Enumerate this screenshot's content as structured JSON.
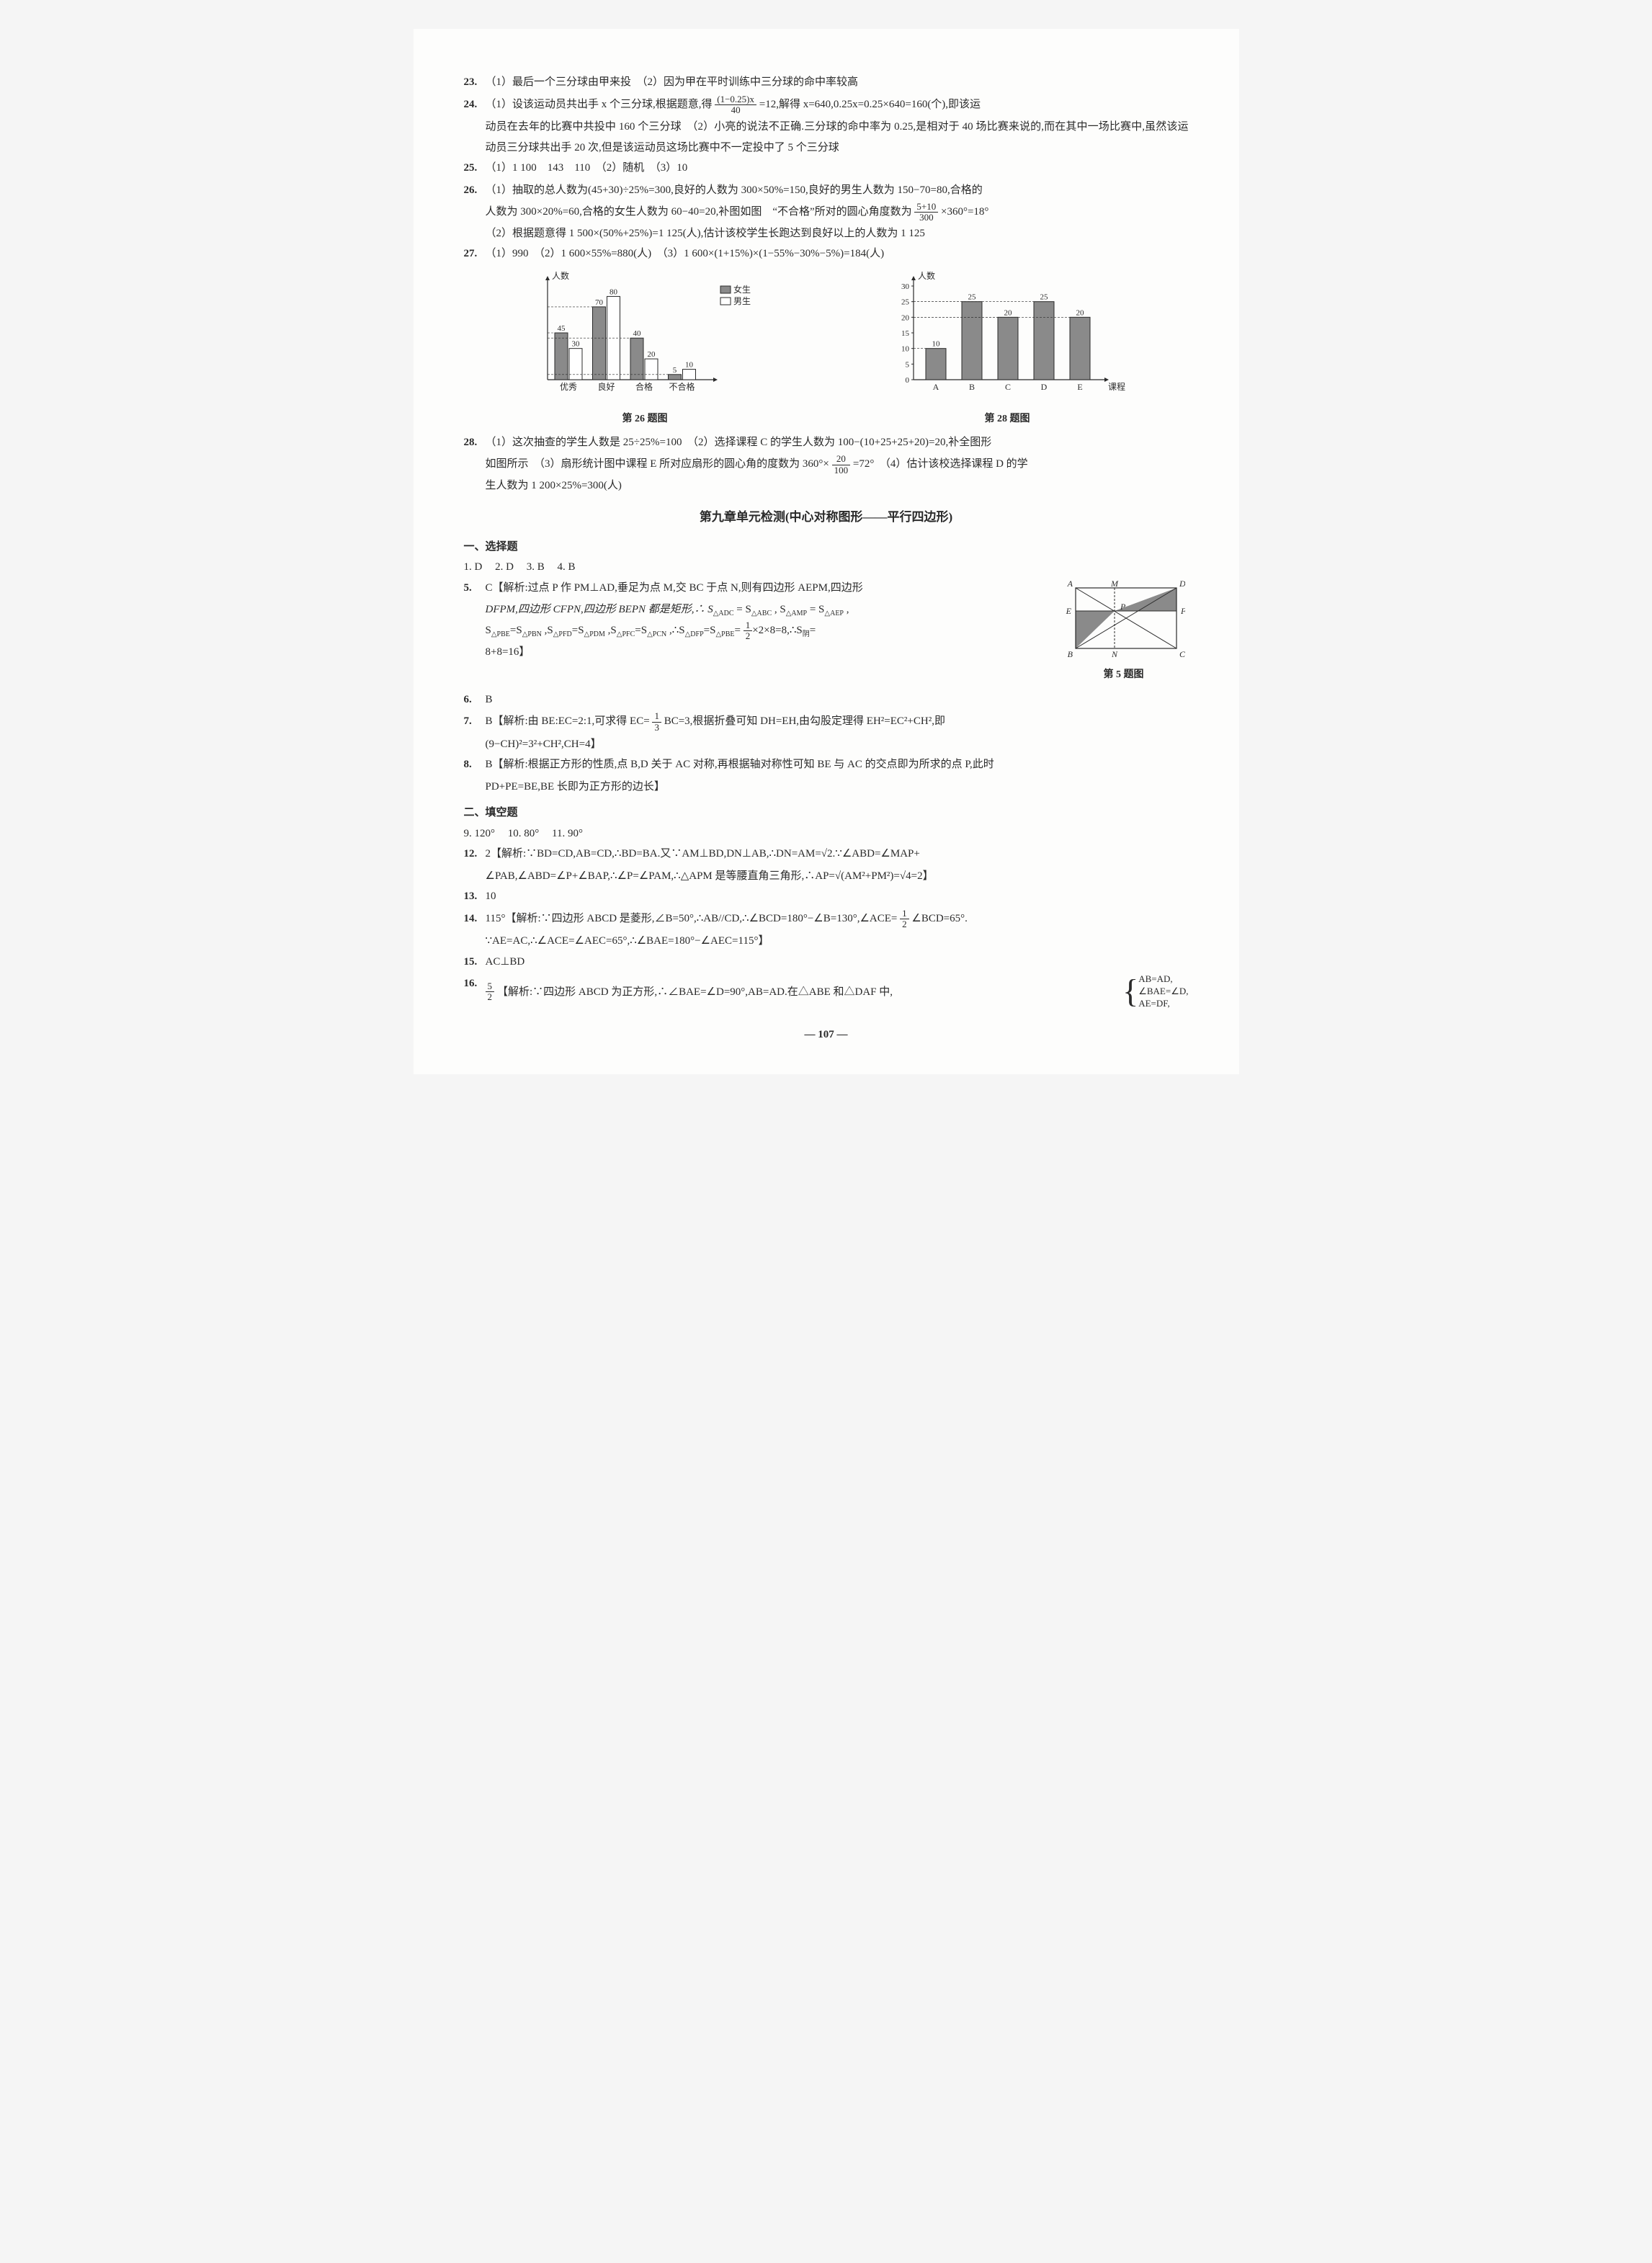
{
  "page_number": "— 107 —",
  "q23": {
    "num": "23.",
    "text": "（1）最后一个三分球由甲来投　（2）因为甲在平时训练中三分球的命中率较高"
  },
  "q24": {
    "num": "24.",
    "part1_a": "（1）设该运动员共出手 x 个三分球,根据题意,得",
    "frac_num": "(1−0.25)x",
    "frac_den": "40",
    "part1_b": "=12,解得 x=640,0.25x=0.25×640=160(个),即该运",
    "part2": "动员在去年的比赛中共投中 160 个三分球　（2）小亮的说法不正确.三分球的命中率为 0.25,是相对于 40 场比赛来说的,而在其中一场比赛中,虽然该运动员三分球共出手 20 次,但是该运动员这场比赛中不一定投中了 5 个三分球"
  },
  "q25": {
    "num": "25.",
    "text": "（1）1 100　143　110　（2）随机　（3）10"
  },
  "q26": {
    "num": "26.",
    "part1": "（1）抽取的总人数为(45+30)÷25%=300,良好的人数为 300×50%=150,良好的男生人数为 150−70=80,合格的",
    "part2_a": "人数为 300×20%=60,合格的女生人数为 60−40=20,补图如图　“不合格”所对的圆心角度数为",
    "frac2_num": "5+10",
    "frac2_den": "300",
    "part2_b": "×360°=18°",
    "part3": "（2）根据题意得 1 500×(50%+25%)=1 125(人),估计该校学生长跑达到良好以上的人数为 1 125"
  },
  "q27": {
    "num": "27.",
    "text": "（1）990　（2）1 600×55%=880(人)　（3）1 600×(1+15%)×(1−55%−30%−5%)=184(人)"
  },
  "chart26": {
    "caption": "第 26 题图",
    "ylabel": "人数",
    "legend": {
      "female": "女生",
      "male": "男生"
    },
    "categories": [
      "优秀",
      "良好",
      "合格",
      "不合格"
    ],
    "female": [
      45,
      70,
      40,
      5
    ],
    "male": [
      30,
      80,
      20,
      10
    ],
    "ymax": 90,
    "female_color": "#8a8a8a",
    "male_color": "#ffffff",
    "bar_border": "#2a2a2a",
    "axis_color": "#2a2a2a",
    "label_fontsize": 12
  },
  "chart28": {
    "caption": "第 28 题图",
    "ylabel": "人数",
    "xlabel": "课程",
    "categories": [
      "A",
      "B",
      "C",
      "D",
      "E"
    ],
    "values": [
      10,
      25,
      20,
      25,
      20
    ],
    "yticks": [
      0,
      5,
      10,
      15,
      20,
      25,
      30
    ],
    "ymax": 30,
    "bar_color": "#8a8a8a",
    "bar_border": "#2a2a2a",
    "axis_color": "#2a2a2a",
    "label_fontsize": 12
  },
  "q28": {
    "num": "28.",
    "part1": "（1）这次抽查的学生人数是 25÷25%=100　（2）选择课程 C 的学生人数为 100−(10+25+25+20)=20,补全图形",
    "part2_a": "如图所示　（3）扇形统计图中课程 E 所对应扇形的圆心角的度数为 360°×",
    "frac_num": "20",
    "frac_den": "100",
    "part2_b": "=72°　（4）估计该校选择课程 D 的学",
    "part3": "生人数为 1 200×25%=300(人)"
  },
  "unit_title": "第九章单元检测(中心对称图形——平行四边形)",
  "sec1_title": "一、选择题",
  "row1": {
    "a1": "1. D",
    "a2": "2. D",
    "a3": "3. B",
    "a4": "4. B"
  },
  "q5": {
    "num": "5.",
    "line1": "C【解析:过点 P 作 PM⊥AD,垂足为点 M,交 BC 于点 N,则有四边形 AEPM,四边形",
    "line2": "DFPM,四边形 CFPN,四边形 BEPN 都是矩形,∴ S",
    "tri1": "△ADC",
    "eq1": " = S",
    "tri2": "△ABC",
    "eq2": " , S",
    "tri3": "△AMP",
    "eq3": " = S",
    "tri4": "△AEP",
    "line2b": " ,",
    "line3a": "S",
    "t1": "△PBE",
    "e1": "=S",
    "t2": "△PBN",
    "e2": " ,S",
    "t3": "△PFD",
    "e3": "=S",
    "t4": "△PDM",
    "e4": " ,S",
    "t5": "△PFC",
    "e5": "=S",
    "t6": "△PCN",
    "e6": " ,∴S",
    "t7": "△DFP",
    "e7": "=S",
    "t8": "△PBE",
    "e8": "=",
    "frac_num": "1",
    "frac_den": "2",
    "line3b": "×2×8=8,∴S",
    "t9": "阴",
    "line3c": "=",
    "line4": "8+8=16】",
    "fig_caption": "第 5 题图",
    "fig": {
      "labels": {
        "A": "A",
        "M": "M",
        "D": "D",
        "E": "E",
        "P": "P",
        "F": "F",
        "B": "B",
        "N": "N",
        "C": "C"
      },
      "shade_color": "#8a8a8a",
      "line_color": "#2a2a2a"
    }
  },
  "q6": {
    "num": "6.",
    "text": "B"
  },
  "q7": {
    "num": "7.",
    "a": "B【解析:由 BE:EC=2:1,可求得 EC=",
    "frac_num": "1",
    "frac_den": "3",
    "b": "BC=3,根据折叠可知 DH=EH,由勾股定理得 EH²=EC²+CH²,即",
    "c": "(9−CH)²=3²+CH²,CH=4】"
  },
  "q8": {
    "num": "8.",
    "line1": "B【解析:根据正方形的性质,点 B,D 关于 AC 对称,再根据轴对称性可知 BE 与 AC 的交点即为所求的点 P,此时",
    "line2": "PD+PE=BE,BE 长即为正方形的边长】"
  },
  "sec2_title": "二、填空题",
  "row2": {
    "a1": "9. 120°",
    "a2": "10. 80°",
    "a3": "11. 90°"
  },
  "q12": {
    "num": "12.",
    "line1": "2【解析:∵BD=CD,AB=CD,∴BD=BA.又∵AM⊥BD,DN⊥AB,∴DN=AM=√2.∵∠ABD=∠MAP+",
    "line2": "∠PAB,∠ABD=∠P+∠BAP,∴∠P=∠PAM,∴△APM 是等腰直角三角形,∴AP=√(AM²+PM²)=√4=2】"
  },
  "q13": {
    "num": "13.",
    "text": "10"
  },
  "q14": {
    "num": "14.",
    "a": "115°【解析:∵四边形 ABCD 是菱形,∠B=50°,∴AB//CD,∴∠BCD=180°−∠B=130°,∠ACE=",
    "frac_num": "1",
    "frac_den": "2",
    "b": "∠BCD=65°.",
    "c": "∵AE=AC,∴∠ACE=∠AEC=65°,∴∠BAE=180°−∠AEC=115°】"
  },
  "q15": {
    "num": "15.",
    "text": "AC⊥BD"
  },
  "q16": {
    "num": "16.",
    "frac_num": "5",
    "frac_den": "2",
    "a": "【解析:∵四边形 ABCD 为正方形,∴∠BAE=∠D=90°,AB=AD.在△ABE 和△DAF 中,",
    "sys1": "AB=AD,",
    "sys2": "∠BAE=∠D,",
    "sys3": "AE=DF,"
  }
}
